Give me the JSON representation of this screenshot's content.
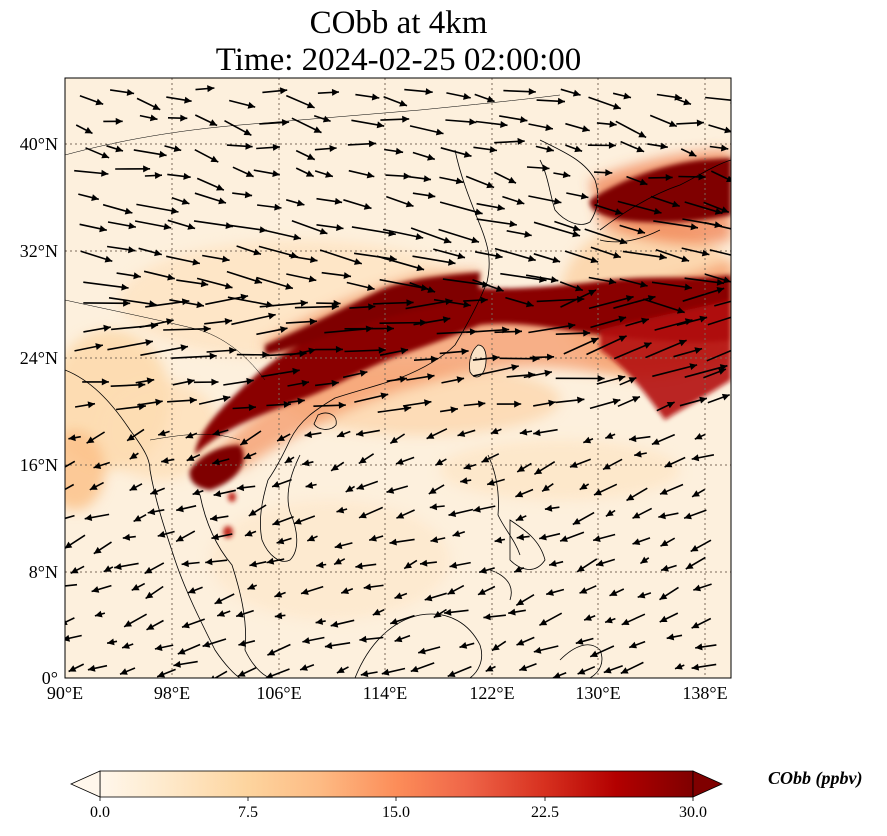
{
  "title": {
    "line1": "CObb at 4km",
    "line2": "Time: 2024-02-25 02:00:00"
  },
  "map": {
    "lon_range": [
      90,
      140
    ],
    "lat_range": [
      0,
      44
    ],
    "gridlines": "dotted",
    "lon_ticks": [
      {
        "value": 90,
        "label": "90°E"
      },
      {
        "value": 98,
        "label": "98°E"
      },
      {
        "value": 106,
        "label": "106°E"
      },
      {
        "value": 114,
        "label": "114°E"
      },
      {
        "value": 122,
        "label": "122°E"
      },
      {
        "value": 130,
        "label": "130°E"
      },
      {
        "value": 138,
        "label": "138°E"
      }
    ],
    "lat_ticks": [
      {
        "value": 0,
        "label": "0°"
      },
      {
        "value": 8,
        "label": "8°N"
      },
      {
        "value": 16,
        "label": "16°N"
      },
      {
        "value": 24,
        "label": "24°N"
      },
      {
        "value": 32,
        "label": "32°N"
      },
      {
        "value": 40,
        "label": "40°N"
      }
    ],
    "wind_vectors": "quiver, predominantly westerly north of ~20°N, northeasterly south of ~18°N"
  },
  "colorbar": {
    "label": "CObb (ppbv)",
    "ticks": [
      "0.0",
      "7.5",
      "15.0",
      "22.5",
      "30.0"
    ],
    "min": 0,
    "max": 30,
    "colormap": "OrRd",
    "colors": [
      "#fff7ec",
      "#fee8c8",
      "#fdd49e",
      "#fdbb84",
      "#fc8d59",
      "#ef6548",
      "#d7301f",
      "#b30000",
      "#7f0000"
    ],
    "extend": "both"
  },
  "colors": {
    "background_field": "#fdf0dd",
    "plume": "#7f0000",
    "coast": "#000000",
    "gridline": "#7a6a5a"
  }
}
